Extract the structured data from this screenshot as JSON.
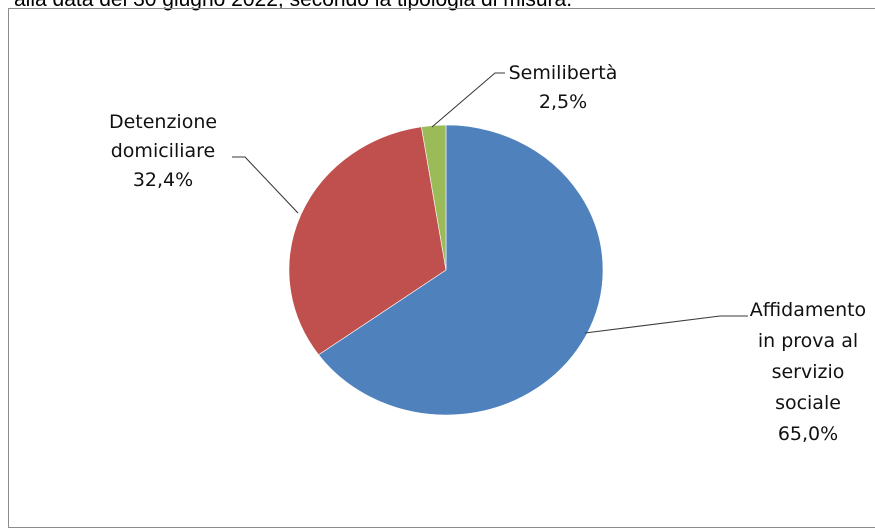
{
  "caption": "alla data del 30 giugno 2022, secondo la tipologia di misura.",
  "chart_data": {
    "type": "pie",
    "title": "",
    "slices": [
      {
        "label": "Affidamento in prova al servizio sociale",
        "label_lines": [
          "Affidamento",
          "in prova al",
          "servizio",
          "sociale",
          "65,0%"
        ],
        "value": 65.0,
        "value_label": "65,0%",
        "color": "#4f81bd"
      },
      {
        "label": "Detenzione domiciliare",
        "label_lines": [
          "Detenzione",
          "domiciliare",
          "32,4%"
        ],
        "value": 32.4,
        "value_label": "32,4%",
        "color": "#c0504d"
      },
      {
        "label": "Semilibertà",
        "label_lines": [
          "Semilibertà",
          "2,5%"
        ],
        "value": 2.5,
        "value_label": "2,5%",
        "color": "#9bbb59"
      }
    ]
  }
}
